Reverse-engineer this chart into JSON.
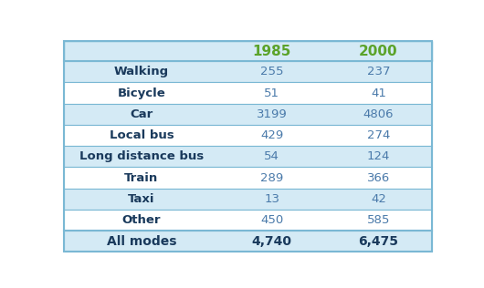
{
  "col_headers": [
    "",
    "1985",
    "2000"
  ],
  "rows": [
    [
      "Walking",
      "255",
      "237"
    ],
    [
      "Bicycle",
      "51",
      "41"
    ],
    [
      "Car",
      "3199",
      "4806"
    ],
    [
      "Local bus",
      "429",
      "274"
    ],
    [
      "Long distance bus",
      "54",
      "124"
    ],
    [
      "Train",
      "289",
      "366"
    ],
    [
      "Taxi",
      "13",
      "42"
    ],
    [
      "Other",
      "450",
      "585"
    ],
    [
      "All modes",
      "4,740",
      "6,475"
    ]
  ],
  "header_color_text": "#5ba32a",
  "label_color": "#1a3a5c",
  "data_color": "#4a7aaa",
  "total_color": "#1a3a5c",
  "row_bg_shaded": "#d4eaf5",
  "row_bg_white": "#ffffff",
  "border_color": "#7ab8d4",
  "fig_bg": "#ffffff",
  "header_fontsize": 11,
  "cell_fontsize": 9.5,
  "total_fontsize": 10,
  "figwidth": 5.3,
  "figheight": 3.16,
  "dpi": 100
}
